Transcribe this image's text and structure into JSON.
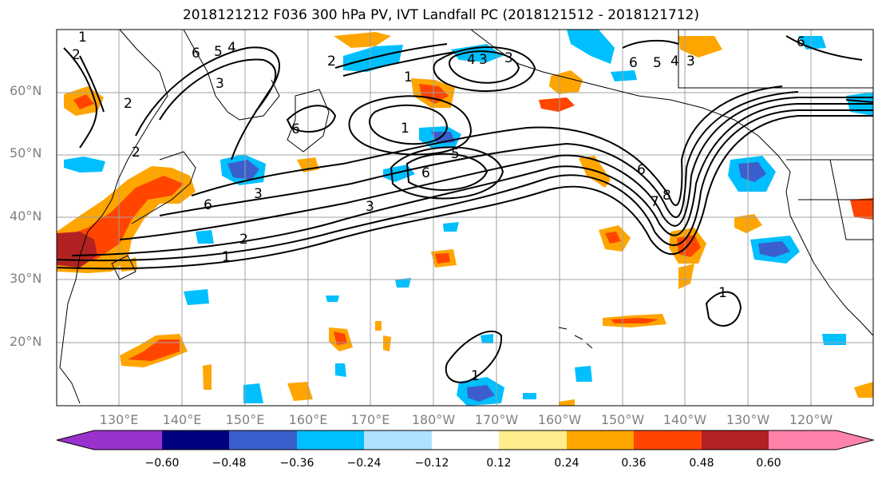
{
  "title": "2018121212 F036 300 hPa PV, IVT Landfall PC (2018121512 - 2018121712)",
  "lat_labels": [
    "60°N",
    "50°N",
    "40°N",
    "30°N",
    "20°N"
  ],
  "lon_labels": [
    "130°E",
    "140°E",
    "150°E",
    "160°E",
    "170°E",
    "180°W",
    "170°W",
    "160°W",
    "150°W",
    "140°W",
    "130°W",
    "120°W"
  ],
  "colorbar": {
    "ticks": [
      "−0.60",
      "−0.48",
      "−0.36",
      "−0.24",
      "−0.12",
      "0.12",
      "0.24",
      "0.36",
      "0.48",
      "0.60"
    ],
    "colors": [
      "#9932cc",
      "#000080",
      "#3a5fcd",
      "#00bfff",
      "#b0e2ff",
      "#ffffff",
      "#ffec8b",
      "#ffa500",
      "#ff4500",
      "#b22222",
      "#ff82ab"
    ]
  },
  "contour_labels": [
    "1",
    "2",
    "5",
    "4",
    "6",
    "3",
    "2",
    "6",
    "2",
    "3",
    "1",
    "5",
    "6",
    "3",
    "1",
    "6",
    "5",
    "4",
    "3",
    "6",
    "3",
    "2",
    "1",
    "6",
    "6",
    "7",
    "8",
    "1",
    "1",
    "2",
    "3",
    "4"
  ]
}
